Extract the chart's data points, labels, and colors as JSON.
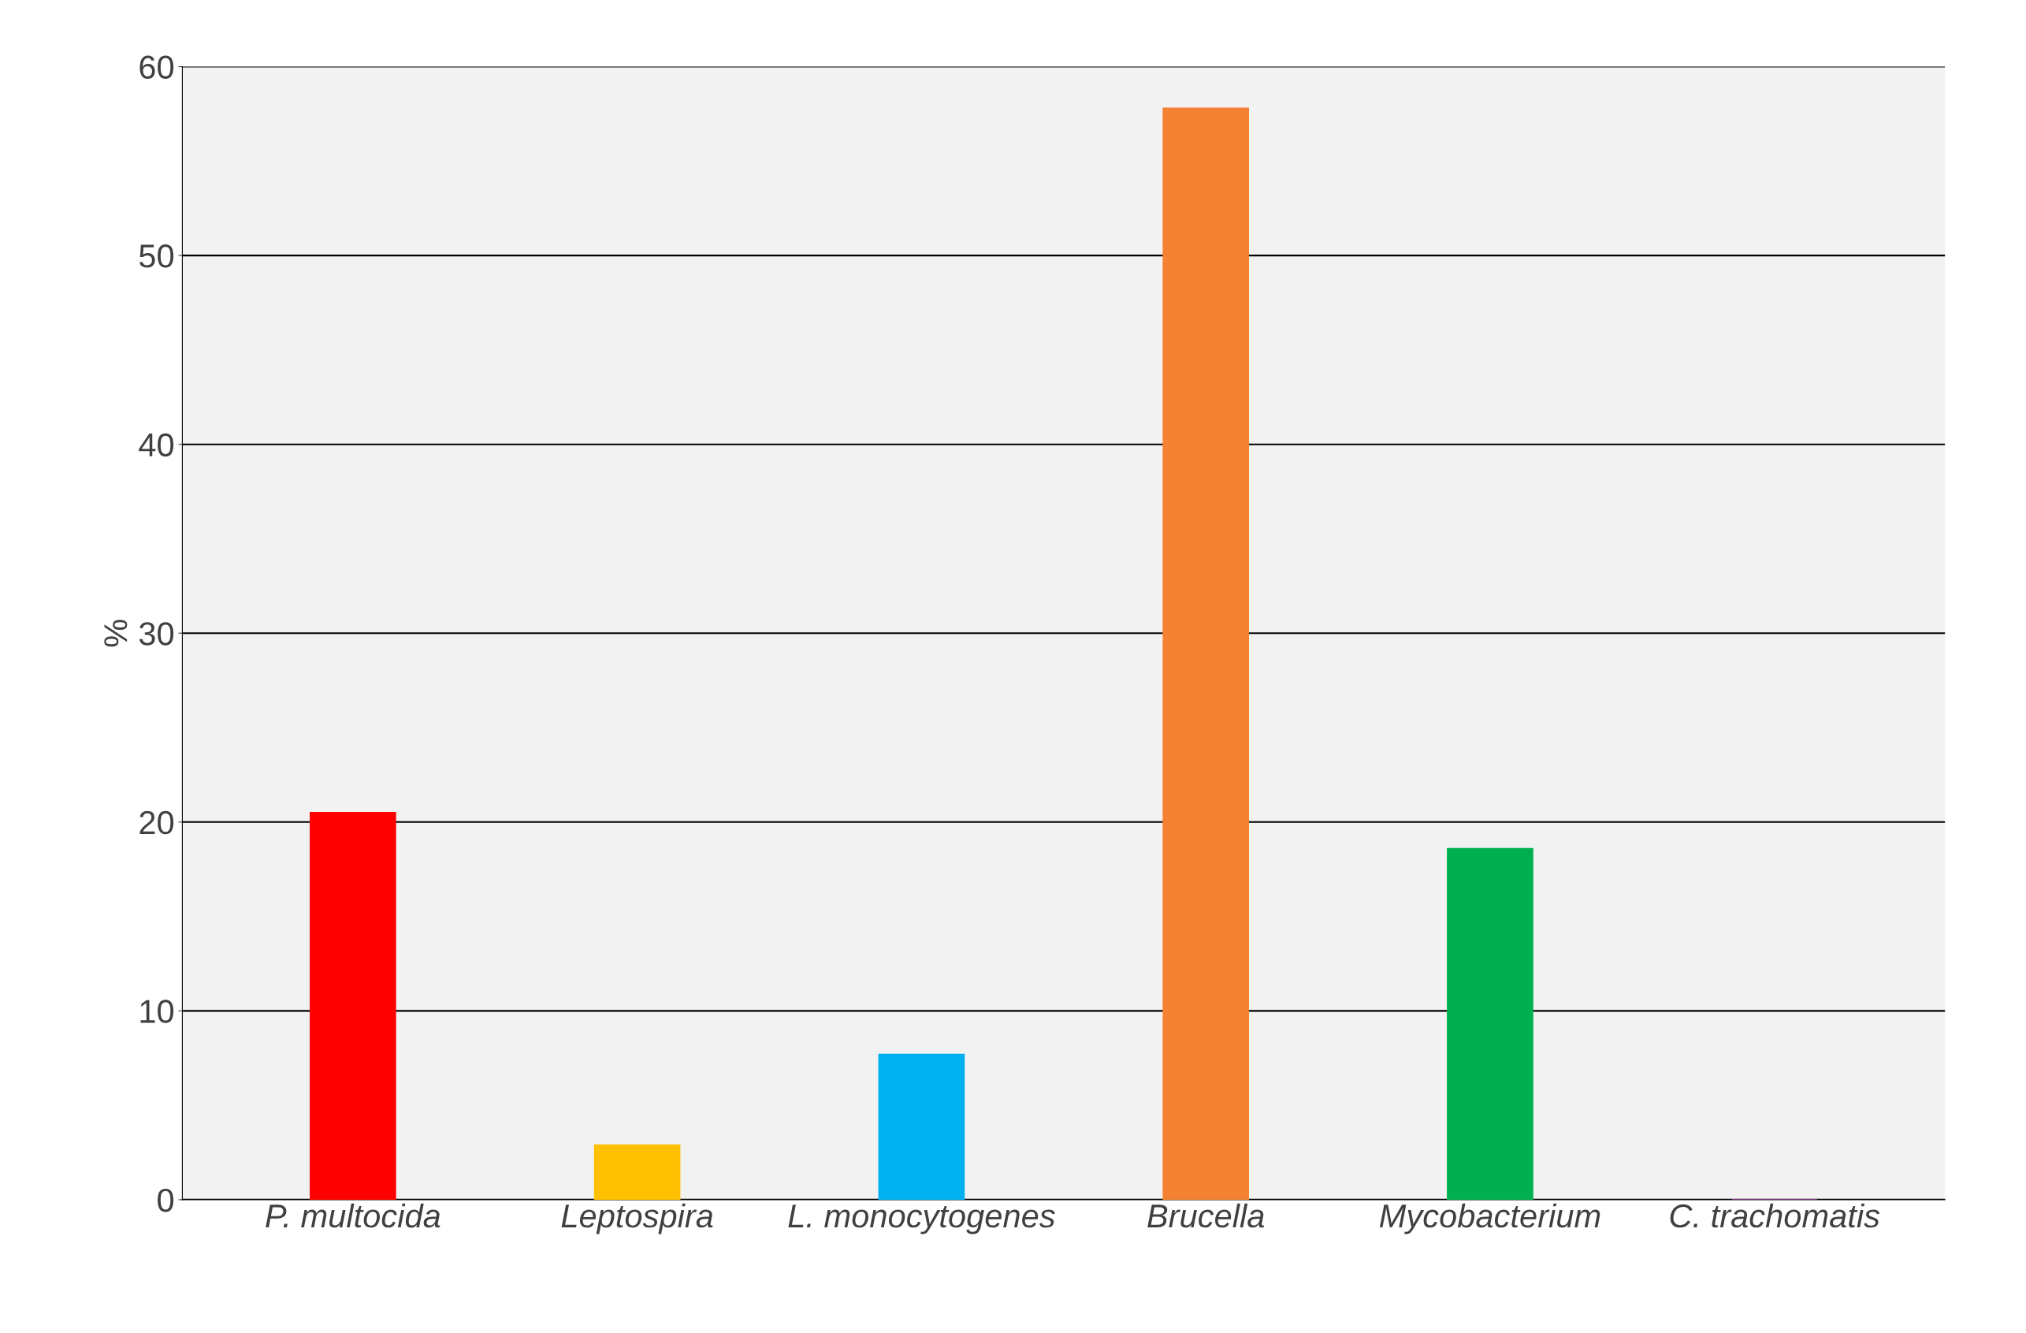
{
  "chart_data": {
    "type": "bar",
    "ylabel": "%",
    "categories": [
      "P. multocida",
      "Leptospira",
      "L. monocytogenes",
      "Brucella",
      "Mycobacterium",
      "C. trachomatis"
    ],
    "values": [
      20.5,
      2.9,
      7.7,
      57.8,
      18.6,
      0
    ],
    "colors": [
      "#ff0000",
      "#ffc000",
      "#00b0f0",
      "#f58233",
      "#00b050",
      "#a349a4"
    ],
    "ylim": [
      0,
      60
    ],
    "yticks": [
      0,
      10,
      20,
      30,
      40,
      50,
      60
    ],
    "grid": "y",
    "legend": false
  }
}
